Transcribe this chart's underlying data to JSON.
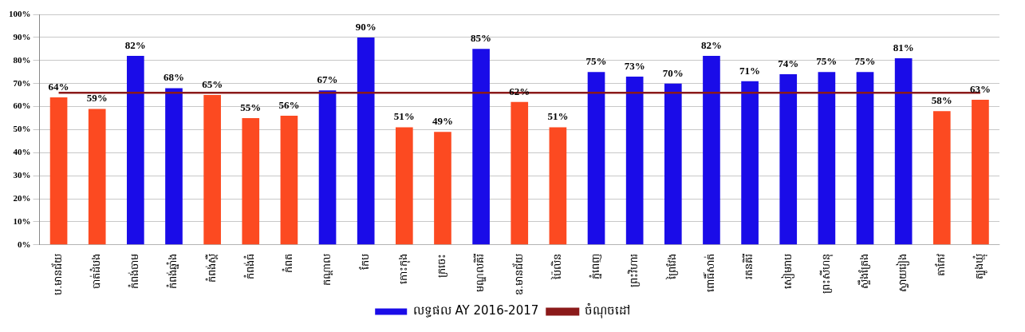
{
  "chart_data": {
    "type": "bar",
    "categories": [
      "ប.មានជ័យ",
      "បាត់ដំបង",
      "កំពង់ចាម",
      "កំពង់ឆ្នាំង",
      "កំពង់ស្ពឺ",
      "កំពង់ធំ",
      "កំពត",
      "កណ្ដាល",
      "កែប",
      "កោះកុង",
      "ក្រចេះ",
      "មណ្ឌលគិរី",
      "ឧ.មានជ័យ",
      "ប៉ៃលិន",
      "ភ្នំពេញ",
      "ព្រះវិហារ",
      "ព្រៃវែង",
      "ពោធិ៍សាត់",
      "រតនគិរី",
      "សៀមរាប",
      "ព្រះសីហនុ",
      "ស្ទឹងត្រែង",
      "ស្វាយរៀង",
      "តាកែវ",
      "ត្បូងឃ្មុំ"
    ],
    "series": [
      {
        "name": "លទ្ធផល AY 2016-2017",
        "color": "#1a0ce8",
        "values": [
          64,
          59,
          82,
          68,
          65,
          55,
          56,
          67,
          90,
          51,
          49,
          85,
          62,
          51,
          75,
          73,
          70,
          82,
          71,
          74,
          75,
          75,
          81,
          58,
          63
        ],
        "colors": [
          "#fc4a21",
          "#fc4a21",
          "#1a0ce8",
          "#1a0ce8",
          "#fc4a21",
          "#fc4a21",
          "#fc4a21",
          "#1a0ce8",
          "#1a0ce8",
          "#fc4a21",
          "#fc4a21",
          "#1a0ce8",
          "#fc4a21",
          "#fc4a21",
          "#1a0ce8",
          "#1a0ce8",
          "#1a0ce8",
          "#1a0ce8",
          "#1a0ce8",
          "#1a0ce8",
          "#1a0ce8",
          "#1a0ce8",
          "#1a0ce8",
          "#fc4a21",
          "#fc4a21"
        ],
        "value_labels": [
          "64%",
          "59%",
          "82%",
          "68%",
          "65%",
          "55%",
          "56%",
          "67%",
          "90%",
          "51%",
          "49%",
          "85%",
          "62%",
          "51%",
          "75%",
          "73%",
          "70%",
          "82%",
          "71%",
          "74%",
          "75%",
          "75%",
          "81%",
          "58%",
          "63%"
        ]
      },
      {
        "name": "ចំណុចដៅ",
        "type": "line",
        "color": "#8b1a1a",
        "values": [
          66,
          66,
          66,
          66,
          66,
          66,
          66,
          66,
          66,
          66,
          66,
          66,
          66,
          66,
          66,
          66,
          66,
          66,
          66,
          66,
          66,
          66,
          66,
          66,
          66
        ]
      }
    ],
    "ylim": [
      0,
      100
    ],
    "yticks": [
      {
        "value": 0,
        "label": "0%"
      },
      {
        "value": 10,
        "label": "10%"
      },
      {
        "value": 20,
        "label": "20%"
      },
      {
        "value": 30,
        "label": "30%"
      },
      {
        "value": 40,
        "label": "40%"
      },
      {
        "value": 50,
        "label": "50%"
      },
      {
        "value": 60,
        "label": "60%"
      },
      {
        "value": 70,
        "label": "70%"
      },
      {
        "value": 80,
        "label": "80%"
      },
      {
        "value": 90,
        "label": "90%"
      },
      {
        "value": 100,
        "label": "100%"
      }
    ],
    "grid": "y",
    "legend": "bottom",
    "marker": "none",
    "line_style": "solid"
  }
}
